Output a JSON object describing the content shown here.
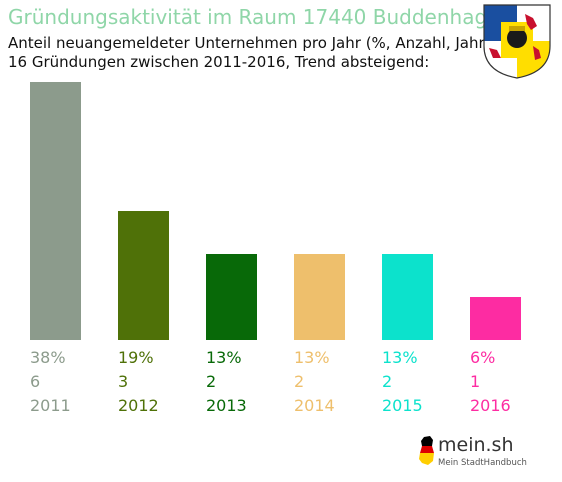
{
  "header": {
    "title": "Gründungsaktivität im Raum 17440 Buddenhagen",
    "subtitle_line1": "Anteil neuangemeldeter Unternehmen pro Jahr (%, Anzahl, Jahr)",
    "subtitle_line2": "16 Gründungen zwischen 2011-2016, Trend absteigend:"
  },
  "crest": {
    "icon": "coat-of-arms-icon",
    "colors": [
      "#1a4fa0",
      "#ffde00",
      "#c8102e"
    ]
  },
  "chart_data": {
    "type": "bar",
    "categories": [
      "2011",
      "2012",
      "2013",
      "2014",
      "2015",
      "2016"
    ],
    "counts": [
      6,
      3,
      2,
      2,
      2,
      1
    ],
    "percent_labels": [
      "38%",
      "19%",
      "13%",
      "13%",
      "13%",
      "6%"
    ],
    "count_labels": [
      "6",
      "3",
      "2",
      "2",
      "2",
      "1"
    ],
    "colors": [
      "#8c9b8c",
      "#4f7108",
      "#086908",
      "#eebf6c",
      "#0ce2cc",
      "#fd2ca2"
    ],
    "ylim": [
      0,
      6
    ],
    "grid": false,
    "legend": "none"
  },
  "footer": {
    "logo_text": "mein.sh",
    "logo_subtext": "Mein StadtHandbuch",
    "logo_icon": "germany-map-icon",
    "logo_colors": [
      "#000000",
      "#dd0000",
      "#ffce00"
    ]
  }
}
